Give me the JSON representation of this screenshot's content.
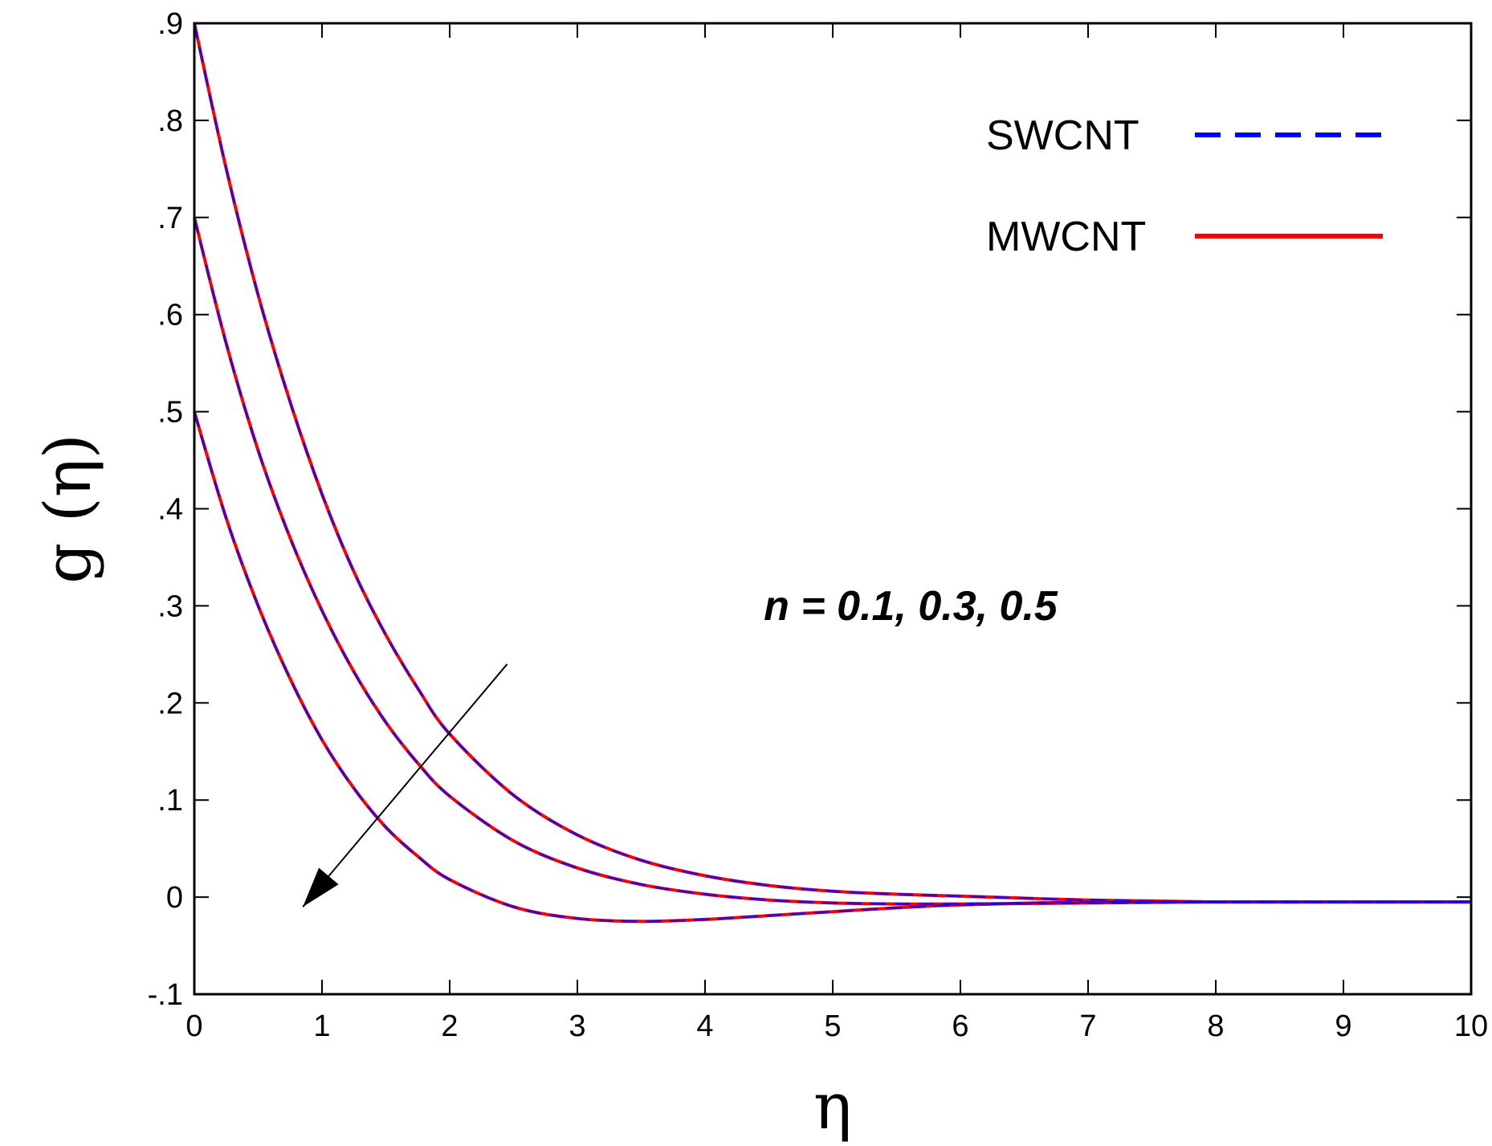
{
  "chart_data": {
    "type": "line",
    "xlabel": "η",
    "ylabel": "g (η)",
    "xlim": [
      0,
      10
    ],
    "ylim": [
      -0.1,
      0.9
    ],
    "xticks": [
      0,
      1,
      2,
      3,
      4,
      5,
      6,
      7,
      8,
      9,
      10
    ],
    "yticks": [
      -0.1,
      0,
      0.1,
      0.2,
      0.3,
      0.4,
      0.5,
      0.6,
      0.7,
      0.8,
      0.9
    ],
    "grid": false,
    "legend_position": "top-right",
    "legend": [
      {
        "label": "SWCNT",
        "color": "#0000ff",
        "style": "dashed"
      },
      {
        "label": "MWCNT",
        "color": "#ff0000",
        "style": "solid"
      }
    ],
    "annotation": {
      "text": "n = 0.1, 0.3, 0.5",
      "arrow_from": [
        2.45,
        0.24
      ],
      "arrow_to": [
        0.85,
        -0.01
      ]
    },
    "series": [
      {
        "legend": "SWCNT",
        "n": "0.1",
        "color": "#0000ff",
        "x": [
          0,
          0.25,
          0.5,
          0.75,
          1,
          1.25,
          1.5,
          1.75,
          2,
          2.5,
          3,
          3.5,
          4,
          4.5,
          5,
          5.5,
          6,
          7,
          8,
          9,
          10
        ],
        "values": [
          0.9,
          0.75,
          0.62,
          0.51,
          0.415,
          0.335,
          0.27,
          0.215,
          0.168,
          0.105,
          0.064,
          0.038,
          0.022,
          0.012,
          0.006,
          0.003,
          0.001,
          -0.003,
          -0.005,
          -0.005,
          -0.005
        ]
      },
      {
        "legend": "MWCNT",
        "n": "0.1",
        "color": "#ff0000",
        "x": [
          0,
          0.25,
          0.5,
          0.75,
          1,
          1.25,
          1.5,
          1.75,
          2,
          2.5,
          3,
          3.5,
          4,
          4.5,
          5,
          5.5,
          6,
          7,
          8,
          9,
          10
        ],
        "values": [
          0.9,
          0.75,
          0.62,
          0.51,
          0.415,
          0.335,
          0.27,
          0.215,
          0.168,
          0.105,
          0.064,
          0.038,
          0.022,
          0.012,
          0.006,
          0.003,
          0.001,
          -0.003,
          -0.005,
          -0.005,
          -0.005
        ]
      },
      {
        "legend": "SWCNT",
        "n": "0.3",
        "color": "#0000ff",
        "x": [
          0,
          0.25,
          0.5,
          0.75,
          1,
          1.25,
          1.5,
          1.75,
          2,
          2.5,
          3,
          3.5,
          4,
          4.5,
          5,
          5.5,
          6,
          7,
          8,
          9,
          10
        ],
        "values": [
          0.7,
          0.57,
          0.46,
          0.37,
          0.295,
          0.232,
          0.18,
          0.138,
          0.104,
          0.058,
          0.03,
          0.013,
          0.003,
          -0.003,
          -0.006,
          -0.007,
          -0.007,
          -0.006,
          -0.005,
          -0.005,
          -0.005
        ]
      },
      {
        "legend": "MWCNT",
        "n": "0.3",
        "color": "#ff0000",
        "x": [
          0,
          0.25,
          0.5,
          0.75,
          1,
          1.25,
          1.5,
          1.75,
          2,
          2.5,
          3,
          3.5,
          4,
          4.5,
          5,
          5.5,
          6,
          7,
          8,
          9,
          10
        ],
        "values": [
          0.7,
          0.57,
          0.46,
          0.37,
          0.295,
          0.232,
          0.18,
          0.138,
          0.104,
          0.058,
          0.03,
          0.013,
          0.003,
          -0.003,
          -0.006,
          -0.007,
          -0.007,
          -0.006,
          -0.005,
          -0.005,
          -0.005
        ]
      },
      {
        "legend": "SWCNT",
        "n": "0.5",
        "color": "#0000ff",
        "x": [
          0,
          0.25,
          0.5,
          0.75,
          1,
          1.25,
          1.5,
          1.75,
          2,
          2.5,
          3,
          3.5,
          4,
          4.5,
          5,
          5.5,
          6,
          7,
          8,
          9,
          10
        ],
        "values": [
          0.5,
          0.39,
          0.3,
          0.225,
          0.162,
          0.112,
          0.072,
          0.042,
          0.018,
          -0.01,
          -0.022,
          -0.025,
          -0.023,
          -0.019,
          -0.015,
          -0.011,
          -0.008,
          -0.005,
          -0.005,
          -0.005,
          -0.005
        ]
      },
      {
        "legend": "MWCNT",
        "n": "0.5",
        "color": "#ff0000",
        "x": [
          0,
          0.25,
          0.5,
          0.75,
          1,
          1.25,
          1.5,
          1.75,
          2,
          2.5,
          3,
          3.5,
          4,
          4.5,
          5,
          5.5,
          6,
          7,
          8,
          9,
          10
        ],
        "values": [
          0.5,
          0.39,
          0.3,
          0.225,
          0.162,
          0.112,
          0.072,
          0.042,
          0.018,
          -0.01,
          -0.022,
          -0.025,
          -0.023,
          -0.019,
          -0.015,
          -0.011,
          -0.008,
          -0.005,
          -0.005,
          -0.005,
          -0.005
        ]
      }
    ]
  }
}
